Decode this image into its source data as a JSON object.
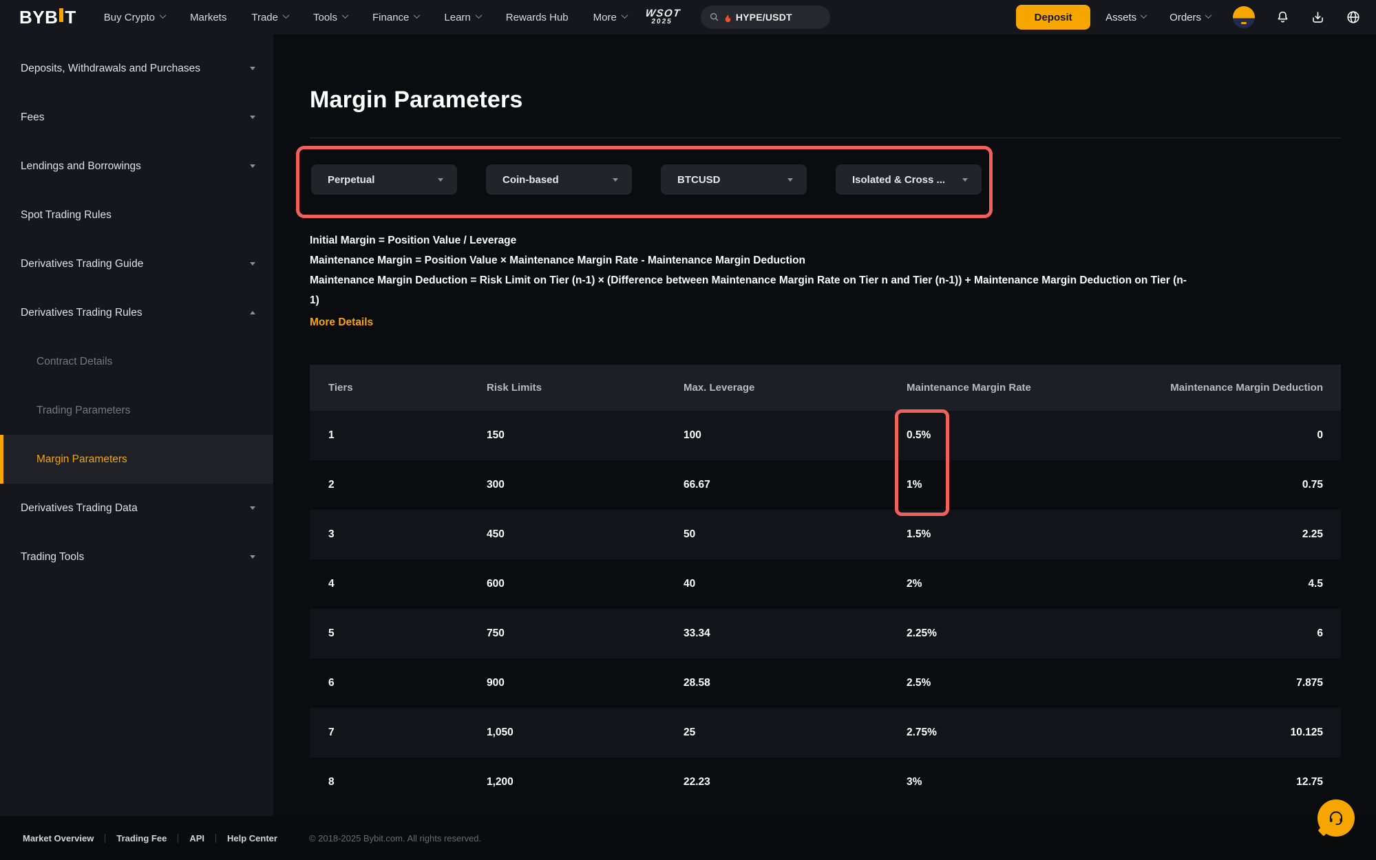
{
  "colors": {
    "accent_orange": "#f7a600",
    "annotation_red": "#f0615b"
  },
  "nav": {
    "logo_pre": "BYB",
    "logo_post": "T",
    "menu": [
      {
        "label": "Buy Crypto",
        "chevron": true
      },
      {
        "label": "Markets",
        "chevron": false
      },
      {
        "label": "Trade",
        "chevron": true
      },
      {
        "label": "Tools",
        "chevron": true
      },
      {
        "label": "Finance",
        "chevron": true
      },
      {
        "label": "Learn",
        "chevron": true
      },
      {
        "label": "Rewards Hub",
        "chevron": false
      },
      {
        "label": "More",
        "chevron": true
      }
    ],
    "wsot_line1": "WSOT",
    "wsot_line2": "2025",
    "search_value": "HYPE/USDT",
    "deposit_label": "Deposit",
    "account_menu": [
      {
        "label": "Assets",
        "chevron": true
      },
      {
        "label": "Orders",
        "chevron": true
      }
    ]
  },
  "sidebar": {
    "items": [
      {
        "label": "Deposits, Withdrawals and Purchases",
        "type": "parent",
        "chevron": "down",
        "active": false
      },
      {
        "label": "Fees",
        "type": "parent",
        "chevron": "down",
        "active": false
      },
      {
        "label": "Lendings and Borrowings",
        "type": "parent",
        "chevron": "down",
        "active": false
      },
      {
        "label": "Spot Trading Rules",
        "type": "parent",
        "chevron": "none",
        "active": false
      },
      {
        "label": "Derivatives Trading Guide",
        "type": "parent",
        "chevron": "down",
        "active": false
      },
      {
        "label": "Derivatives Trading Rules",
        "type": "parent",
        "chevron": "up",
        "active": false
      },
      {
        "label": "Contract Details",
        "type": "sub",
        "chevron": "none",
        "active": false
      },
      {
        "label": "Trading Parameters",
        "type": "sub",
        "chevron": "none",
        "active": false
      },
      {
        "label": "Margin Parameters",
        "type": "sub",
        "chevron": "none",
        "active": true
      },
      {
        "label": "Derivatives Trading Data",
        "type": "parent",
        "chevron": "down",
        "active": false
      },
      {
        "label": "Trading Tools",
        "type": "parent",
        "chevron": "down",
        "active": false
      }
    ]
  },
  "page": {
    "title": "Margin Parameters",
    "filters": [
      {
        "value": "Perpetual"
      },
      {
        "value": "Coin-based"
      },
      {
        "value": "BTCUSD"
      },
      {
        "value": "Isolated & Cross ..."
      }
    ],
    "formula_lines": [
      "Initial Margin = Position Value / Leverage",
      "Maintenance Margin = Position Value × Maintenance Margin Rate - Maintenance Margin Deduction",
      "Maintenance Margin Deduction = Risk Limit on Tier (n-1) × (Difference between Maintenance Margin Rate on Tier n and Tier (n-1)) + Maintenance Margin Deduction on Tier (n-",
      "1)"
    ],
    "more_details_label": "More Details"
  },
  "table": {
    "headers": [
      "Tiers",
      "Risk Limits",
      "Max. Leverage",
      "Maintenance Margin Rate",
      "Maintenance Margin Deduction"
    ],
    "rows": [
      [
        "1",
        "150",
        "100",
        "0.5%",
        "0"
      ],
      [
        "2",
        "300",
        "66.67",
        "1%",
        "0.75"
      ],
      [
        "3",
        "450",
        "50",
        "1.5%",
        "2.25"
      ],
      [
        "4",
        "600",
        "40",
        "2%",
        "4.5"
      ],
      [
        "5",
        "750",
        "33.34",
        "2.25%",
        "6"
      ],
      [
        "6",
        "900",
        "28.58",
        "2.5%",
        "7.875"
      ],
      [
        "7",
        "1,050",
        "25",
        "2.75%",
        "10.125"
      ],
      [
        "8",
        "1,200",
        "22.23",
        "3%",
        "12.75"
      ]
    ]
  },
  "footer": {
    "links": [
      "Market Overview",
      "Trading Fee",
      "API",
      "Help Center"
    ],
    "copyright": "© 2018-2025 Bybit.com. All rights reserved."
  }
}
